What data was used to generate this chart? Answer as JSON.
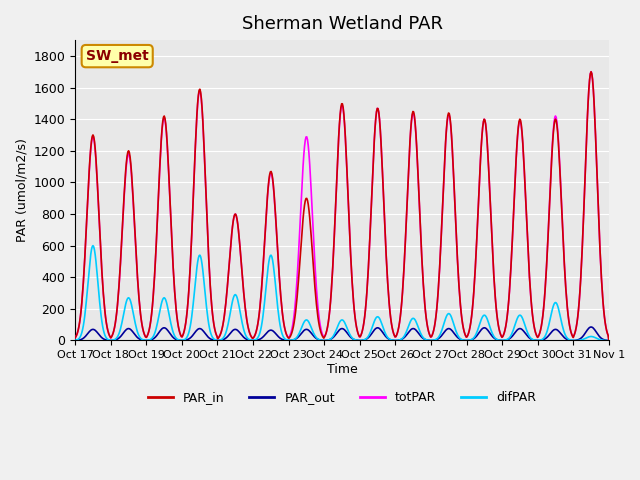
{
  "title": "Sherman Wetland PAR",
  "ylabel": "PAR (umol/m2/s)",
  "xlabel": "Time",
  "ylim": [
    0,
    1900
  ],
  "yticks": [
    0,
    200,
    400,
    600,
    800,
    1000,
    1200,
    1400,
    1600,
    1800
  ],
  "plot_bg_color": "#e8e8e8",
  "fig_bg_color": "#f0f0f0",
  "colors": {
    "PAR_in": "#cc0000",
    "PAR_out": "#000099",
    "totPAR": "#ff00ff",
    "difPAR": "#00ccff"
  },
  "station_label": "SW_met",
  "station_label_color": "#8b0000",
  "station_label_bg": "#ffffaa",
  "station_label_edge": "#cc8800",
  "xtick_labels": [
    "Oct 17",
    "Oct 18",
    "Oct 19",
    "Oct 20",
    "Oct 21",
    "Oct 22",
    "Oct 23",
    "Oct 24",
    "Oct 25",
    "Oct 26",
    "Oct 27",
    "Oct 28",
    "Oct 29",
    "Oct 30",
    "Oct 31",
    "Nov 1"
  ],
  "peak_PAR_in": [
    1300,
    1200,
    1420,
    1590,
    800,
    1070,
    900,
    1500,
    1470,
    1450,
    1440,
    1400,
    1400,
    1400,
    1700
  ],
  "peak_totPAR": [
    1290,
    1180,
    1410,
    1580,
    800,
    1060,
    1290,
    1490,
    1470,
    1440,
    1430,
    1400,
    1390,
    1420,
    1700
  ],
  "peak_PAR_out": [
    70,
    75,
    80,
    75,
    70,
    65,
    70,
    75,
    80,
    75,
    75,
    80,
    75,
    70,
    85
  ],
  "peak_difPAR": [
    600,
    270,
    270,
    540,
    290,
    540,
    130,
    130,
    150,
    140,
    170,
    160,
    160,
    240,
    25
  ]
}
